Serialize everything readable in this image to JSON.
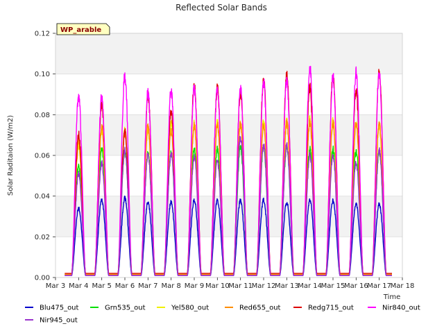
{
  "chart_data": {
    "type": "line",
    "title": "Reflected Solar Bands",
    "xlabel": "Time",
    "ylabel": "Solar Raditaion (W/m2)",
    "station_label": "WP_arable",
    "xlim": [
      3,
      18
    ],
    "ylim": [
      0,
      0.12
    ],
    "x_ticks": [
      3,
      4,
      5,
      6,
      7,
      8,
      9,
      10,
      11,
      12,
      13,
      14,
      15,
      16,
      17,
      18
    ],
    "x_tick_labels": [
      "Mar 3",
      "Mar 4",
      "Mar 5",
      "Mar 6",
      "Mar 7",
      "Mar 8",
      "Mar 9",
      "Mar 10",
      "Mar 11",
      "Mar 12",
      "Mar 13",
      "Mar 14",
      "Mar 15",
      "Mar 16",
      "Mar 17",
      "Mar 18"
    ],
    "y_ticks": [
      0.0,
      0.02,
      0.04,
      0.06,
      0.08,
      0.1,
      0.12
    ],
    "y_tick_labels": [
      "0.00",
      "0.02",
      "0.04",
      "0.06",
      "0.08",
      "0.10",
      "0.12"
    ],
    "grid": true,
    "background_bands": true,
    "legend_placement": "bottom",
    "peak_days": [
      4.0,
      5.0,
      6.0,
      7.0,
      8.0,
      9.0,
      10.0,
      11.0,
      12.0,
      13.0,
      14.0,
      15.0,
      16.0,
      17.0
    ],
    "series": [
      {
        "name": "Blu475_out",
        "color": "#0000cc",
        "baseline": 0.001,
        "peaks": [
          0.034,
          0.038,
          0.039,
          0.037,
          0.037,
          0.038,
          0.038,
          0.038,
          0.038,
          0.037,
          0.038,
          0.038,
          0.036,
          0.036
        ]
      },
      {
        "name": "Grn535_out",
        "color": "#00e000",
        "baseline": 0.0015,
        "peaks": [
          0.055,
          0.063,
          0.062,
          0.061,
          0.061,
          0.063,
          0.063,
          0.064,
          0.064,
          0.064,
          0.063,
          0.063,
          0.062,
          0.062
        ]
      },
      {
        "name": "Yel580_out",
        "color": "#f0f000",
        "baseline": 0.0015,
        "peaks": [
          0.065,
          0.072,
          0.072,
          0.073,
          0.075,
          0.076,
          0.076,
          0.076,
          0.077,
          0.077,
          0.078,
          0.077,
          0.076,
          0.075
        ]
      },
      {
        "name": "Red655_out",
        "color": "#ff8c00",
        "baseline": 0.0015,
        "peaks": [
          0.068,
          0.074,
          0.071,
          0.074,
          0.072,
          0.075,
          0.075,
          0.075,
          0.075,
          0.076,
          0.076,
          0.076,
          0.076,
          0.076
        ]
      },
      {
        "name": "Redg715_out",
        "color": "#dd0000",
        "baseline": 0.002,
        "peaks": [
          0.07,
          0.085,
          0.072,
          0.09,
          0.082,
          0.095,
          0.093,
          0.091,
          0.097,
          0.099,
          0.093,
          0.099,
          0.092,
          0.101
        ]
      },
      {
        "name": "Nir840_out",
        "color": "#ff00ff",
        "baseline": 0.001,
        "peaks": [
          0.089,
          0.089,
          0.099,
          0.091,
          0.092,
          0.093,
          0.093,
          0.093,
          0.096,
          0.097,
          0.103,
          0.099,
          0.101,
          0.1
        ]
      },
      {
        "name": "Nir945_out",
        "color": "#9932cc",
        "baseline": 0.001,
        "peaks": [
          0.051,
          0.056,
          0.063,
          0.06,
          0.061,
          0.059,
          0.057,
          0.069,
          0.065,
          0.065,
          0.06,
          0.06,
          0.056,
          0.063
        ]
      }
    ]
  }
}
